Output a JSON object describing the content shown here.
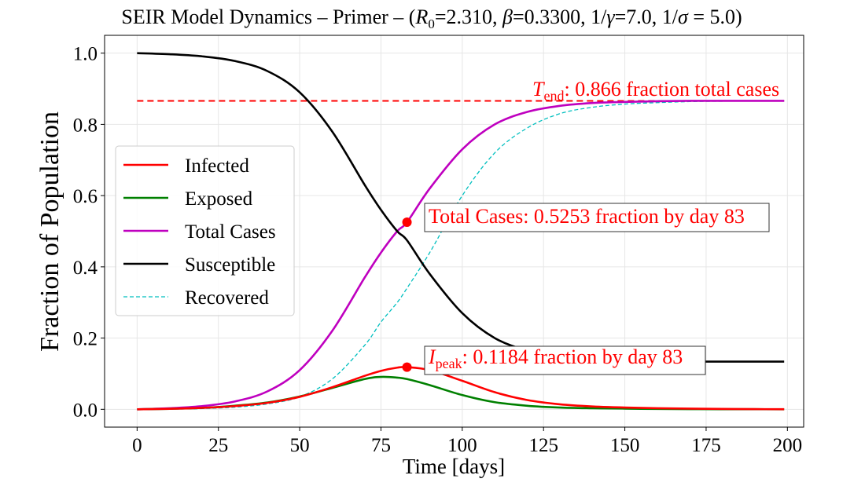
{
  "chart_data": {
    "type": "line",
    "title": {
      "prefix": "SEIR Model Dynamics – Primer – (",
      "r0_symbol": "R",
      "r0_sub": "0",
      "r0_value": "=2.310, ",
      "beta_symbol": "β",
      "beta_value": "=0.3300, 1/",
      "gamma_symbol": "γ",
      "gamma_value": "=7.0, 1/",
      "sigma_symbol": "σ",
      "sigma_value": " = 5.0)"
    },
    "xlabel": "Time [days]",
    "ylabel": "Fraction of Population",
    "xlim": [
      -10,
      205
    ],
    "ylim": [
      -0.05,
      1.05
    ],
    "xticks": [
      0,
      25,
      50,
      75,
      100,
      125,
      150,
      175,
      200
    ],
    "xtick_labels": [
      "0",
      "25",
      "50",
      "75",
      "100",
      "125",
      "150",
      "175",
      "200"
    ],
    "yticks": [
      0.0,
      0.2,
      0.4,
      0.6,
      0.8,
      1.0
    ],
    "ytick_labels": [
      "0.0",
      "0.2",
      "0.4",
      "0.6",
      "0.8",
      "1.0"
    ],
    "grid": true,
    "legend_position": "center-left",
    "x": [
      0,
      10,
      20,
      30,
      40,
      50,
      60,
      70,
      75,
      80,
      83,
      90,
      100,
      110,
      120,
      130,
      140,
      150,
      160,
      170,
      180,
      190,
      199
    ],
    "series": [
      {
        "name": "Infected",
        "color": "#ff0000",
        "style": "solid",
        "values": [
          0.0,
          0.0015,
          0.004,
          0.009,
          0.018,
          0.035,
          0.062,
          0.094,
          0.108,
          0.117,
          0.1184,
          0.11,
          0.08,
          0.048,
          0.026,
          0.014,
          0.008,
          0.005,
          0.003,
          0.002,
          0.001,
          0.0005,
          0.0003
        ]
      },
      {
        "name": "Exposed",
        "color": "#008000",
        "style": "solid",
        "values": [
          0.0,
          0.0015,
          0.004,
          0.01,
          0.019,
          0.036,
          0.06,
          0.085,
          0.091,
          0.089,
          0.085,
          0.068,
          0.04,
          0.02,
          0.01,
          0.005,
          0.003,
          0.002,
          0.001,
          0.0005,
          0.0003,
          0.0002,
          0.0001
        ]
      },
      {
        "name": "Total Cases",
        "color": "#bf00bf",
        "style": "solid",
        "values": [
          0.0,
          0.003,
          0.009,
          0.022,
          0.05,
          0.11,
          0.22,
          0.37,
          0.44,
          0.5,
          0.5253,
          0.62,
          0.73,
          0.8,
          0.835,
          0.852,
          0.86,
          0.863,
          0.865,
          0.866,
          0.866,
          0.866,
          0.866
        ]
      },
      {
        "name": "Susceptible",
        "color": "#000000",
        "style": "solid",
        "values": [
          1.0,
          0.997,
          0.991,
          0.978,
          0.95,
          0.89,
          0.78,
          0.63,
          0.56,
          0.5,
          0.4747,
          0.38,
          0.27,
          0.2,
          0.165,
          0.148,
          0.14,
          0.137,
          0.135,
          0.134,
          0.134,
          0.134,
          0.134
        ]
      },
      {
        "name": "Recovered",
        "color": "#00bfbf",
        "style": "dashed",
        "values": [
          0.0,
          0.0005,
          0.002,
          0.006,
          0.015,
          0.035,
          0.085,
          0.18,
          0.245,
          0.3,
          0.34,
          0.44,
          0.6,
          0.72,
          0.79,
          0.83,
          0.848,
          0.857,
          0.861,
          0.864,
          0.865,
          0.866,
          0.866
        ]
      }
    ],
    "hline": {
      "y": 0.866,
      "x_range": [
        0,
        199
      ],
      "color": "#ff0000",
      "style": "dashed"
    },
    "markers": [
      {
        "x": 83,
        "y": 0.5253,
        "color": "#ff0000"
      },
      {
        "x": 83,
        "y": 0.1184,
        "color": "#ff0000"
      }
    ],
    "annotations": {
      "tend": {
        "symbol": "T",
        "sub": "end",
        "text": ": 0.866 fraction total cases"
      },
      "total": {
        "text": "Total Cases: 0.5253 fraction by day 83"
      },
      "ipeak": {
        "symbol": "I",
        "sub": "peak",
        "text": ": 0.1184 fraction by day 83"
      }
    }
  }
}
